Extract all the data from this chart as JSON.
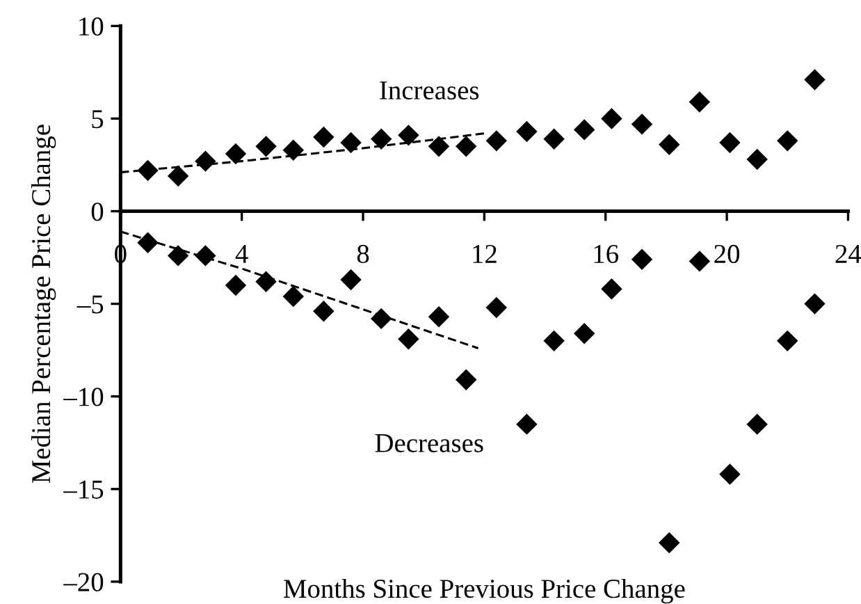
{
  "chart_data": {
    "type": "scatter",
    "xlabel": "Months Since Previous Price Change",
    "ylabel": "Median Percentage Price Change",
    "xlim": [
      0,
      24
    ],
    "xticks": [
      0,
      4,
      8,
      12,
      16,
      20,
      24
    ],
    "ylim": [
      -20,
      10
    ],
    "yticks": [
      {
        "value": -20,
        "label": "–20"
      },
      {
        "value": -15,
        "label": "–15"
      },
      {
        "value": -10,
        "label": "–10"
      },
      {
        "value": -5,
        "label": "–5"
      },
      0,
      5,
      10
    ],
    "marker": "diamond",
    "grid": false,
    "legend": false,
    "series": [
      {
        "name": "Increases",
        "color": "#000000",
        "x": [
          0.9,
          1.9,
          2.8,
          3.8,
          4.8,
          5.7,
          6.7,
          7.6,
          8.6,
          9.5,
          10.5,
          11.4,
          12.4,
          13.4,
          14.3,
          15.3,
          16.2,
          17.2,
          18.1,
          19.1,
          20.1,
          21.0,
          22.0,
          22.9
        ],
        "values": [
          2.2,
          1.9,
          2.7,
          3.1,
          3.5,
          3.3,
          4.0,
          3.7,
          3.9,
          4.1,
          3.5,
          3.5,
          3.8,
          4.3,
          3.9,
          4.4,
          5.0,
          4.7,
          3.6,
          5.9,
          3.7,
          2.8,
          3.8,
          7.1
        ]
      },
      {
        "name": "Decreases",
        "color": "#000000",
        "x": [
          0.9,
          1.9,
          2.8,
          3.8,
          4.8,
          5.7,
          6.7,
          7.6,
          8.6,
          9.5,
          10.5,
          11.4,
          12.4,
          13.4,
          14.3,
          15.3,
          16.2,
          17.2,
          18.1,
          19.1,
          20.1,
          21.0,
          22.0,
          22.9
        ],
        "values": [
          -1.7,
          -2.4,
          -2.4,
          -4.0,
          -3.8,
          -4.6,
          -5.4,
          -3.7,
          -5.8,
          -6.9,
          -5.7,
          -9.1,
          -5.2,
          -11.5,
          -7.0,
          -6.6,
          -4.2,
          -2.6,
          -17.9,
          -2.7,
          -14.2,
          -11.5,
          -7.0,
          -5.0
        ]
      },
      {
        "type": "line",
        "color": "#000000",
        "line_style": "dashed",
        "marker": "none",
        "x": [
          0,
          4,
          8,
          12
        ],
        "values": [
          2.1,
          2.7,
          3.4,
          4.2
        ]
      },
      {
        "type": "line",
        "color": "#000000",
        "line_style": "dashed",
        "marker": "none",
        "x": [
          0,
          4,
          8,
          11.8
        ],
        "values": [
          -1.1,
          -3.1,
          -5.3,
          -7.4
        ]
      }
    ]
  }
}
